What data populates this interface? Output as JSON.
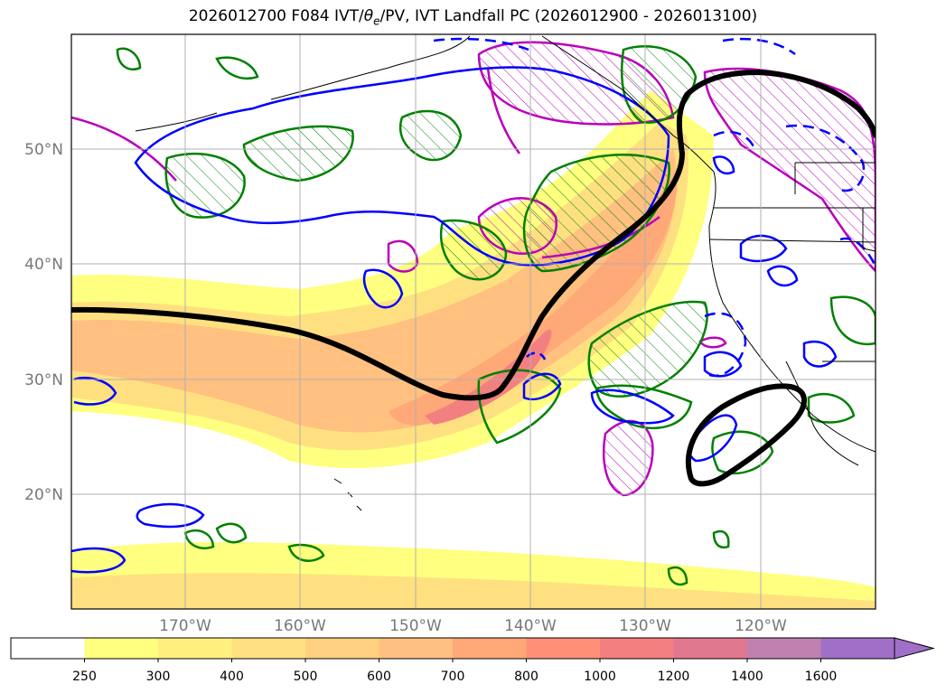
{
  "title": {
    "pre": "2026012700 F084 IVT/",
    "theta": "θ",
    "sub": "e",
    "post": "/PV, IVT Landfall PC (2026012900 - 2026013100)"
  },
  "lat_labels": [
    "50°N",
    "40°N",
    "30°N",
    "20°N"
  ],
  "lon_labels": [
    "170°W",
    "160°W",
    "150°W",
    "140°W",
    "130°W",
    "120°W"
  ],
  "colorbar": {
    "ticks": [
      "250",
      "300",
      "400",
      "500",
      "600",
      "700",
      "800",
      "1000",
      "1200",
      "1400",
      "1600"
    ],
    "colors": [
      "#ffffff",
      "#ffff80",
      "#fff080",
      "#ffe080",
      "#ffd080",
      "#ffc080",
      "#ffa878",
      "#ff9078",
      "#f28080",
      "#e07890",
      "#c080b0",
      "#a070c8"
    ]
  },
  "colors": {
    "pv_contour": "#0000ff",
    "theta_contour": "#008000",
    "ivt_pc_contour": "#bb00bb",
    "landfall_line": "#000000"
  }
}
